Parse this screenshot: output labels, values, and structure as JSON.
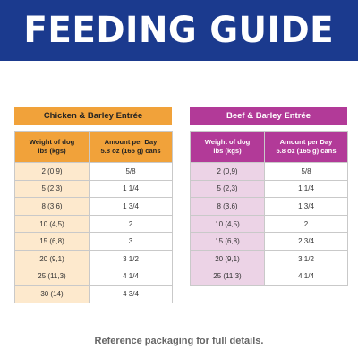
{
  "banner": {
    "title": "FEEDING GUIDE"
  },
  "left_table": {
    "title": "Chicken & Barley Entrée",
    "header_weight": [
      "Weight of dog",
      "lbs (kgs)"
    ],
    "header_amount": [
      "Amount per Day",
      "5.8 oz (165 g) cans"
    ],
    "rows": [
      {
        "weight": "2 (0,9)",
        "amount": "5/8"
      },
      {
        "weight": "5 (2,3)",
        "amount": "1 1/4"
      },
      {
        "weight": "8 (3,6)",
        "amount": "1 3/4"
      },
      {
        "weight": "10 (4,5)",
        "amount": "2"
      },
      {
        "weight": "15 (6,8)",
        "amount": "3"
      },
      {
        "weight": "20 (9,1)",
        "amount": "3 1/2"
      },
      {
        "weight": "25 (11,3)",
        "amount": "4 1/4"
      },
      {
        "weight": "30 (14)",
        "amount": "4 3/4"
      }
    ]
  },
  "right_table": {
    "title": "Beef & Barley Entrée",
    "header_weight": [
      "Weight of dog",
      "lbs (kgs)"
    ],
    "header_amount": [
      "Amount per Day",
      "5.8 oz (165 g) cans"
    ],
    "rows": [
      {
        "weight": "2 (0,9)",
        "amount": "5/8"
      },
      {
        "weight": "5 (2,3)",
        "amount": "1 1/4"
      },
      {
        "weight": "8 (3,6)",
        "amount": "1 3/4"
      },
      {
        "weight": "10 (4,5)",
        "amount": "2"
      },
      {
        "weight": "15 (6,8)",
        "amount": "2 3/4"
      },
      {
        "weight": "20 (9,1)",
        "amount": "3 1/2"
      },
      {
        "weight": "25 (11,3)",
        "amount": "4 1/4"
      }
    ]
  },
  "footer": {
    "note": "Reference packaging for full details."
  },
  "colors": {
    "banner": "#1b3a8e",
    "orange": "#f1a23a",
    "purple": "#b23a98"
  }
}
